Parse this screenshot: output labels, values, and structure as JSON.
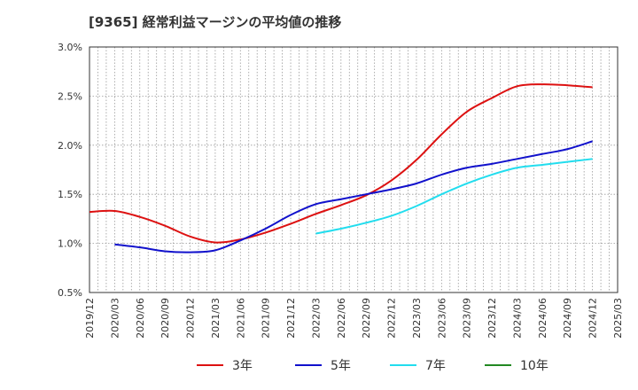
{
  "chart_data": {
    "type": "line",
    "title": "[9365]  経常利益マージンの平均値の推移",
    "xlabel": "",
    "ylabel": "",
    "x": [
      "2019/12",
      "2020/03",
      "2020/06",
      "2020/09",
      "2020/12",
      "2021/03",
      "2021/06",
      "2021/09",
      "2021/12",
      "2022/03",
      "2022/06",
      "2022/09",
      "2022/12",
      "2023/03",
      "2023/06",
      "2023/09",
      "2023/12",
      "2024/03",
      "2024/06",
      "2024/09",
      "2024/12",
      "2025/03"
    ],
    "y_ticks": [
      "0.5%",
      "1.0%",
      "1.5%",
      "2.0%",
      "2.5%",
      "3.0%"
    ],
    "ylim": [
      0.5,
      3.0
    ],
    "grid": true,
    "legend_position": "bottom",
    "series": [
      {
        "name": "3年",
        "color": "#dd1111",
        "values": [
          1.32,
          1.33,
          1.27,
          1.18,
          1.07,
          1.01,
          1.04,
          1.11,
          1.2,
          1.3,
          1.39,
          1.49,
          1.64,
          1.85,
          2.11,
          2.34,
          2.48,
          2.6,
          2.62,
          2.61,
          2.59,
          null
        ]
      },
      {
        "name": "5年",
        "color": "#1111cc",
        "values": [
          null,
          0.99,
          0.96,
          0.92,
          0.91,
          0.93,
          1.03,
          1.15,
          1.29,
          1.4,
          1.45,
          1.5,
          1.55,
          1.61,
          1.7,
          1.77,
          1.81,
          1.86,
          1.91,
          1.96,
          2.04,
          null
        ]
      },
      {
        "name": "7年",
        "color": "#22ddee",
        "values": [
          null,
          null,
          null,
          null,
          null,
          null,
          null,
          null,
          null,
          1.1,
          1.15,
          1.21,
          1.28,
          1.38,
          1.5,
          1.61,
          1.7,
          1.77,
          1.8,
          1.83,
          1.86,
          null
        ]
      },
      {
        "name": "10年",
        "color": "#228822",
        "values": [
          null,
          null,
          null,
          null,
          null,
          null,
          null,
          null,
          null,
          null,
          null,
          null,
          null,
          null,
          null,
          null,
          null,
          null,
          null,
          null,
          null,
          null
        ]
      }
    ]
  }
}
